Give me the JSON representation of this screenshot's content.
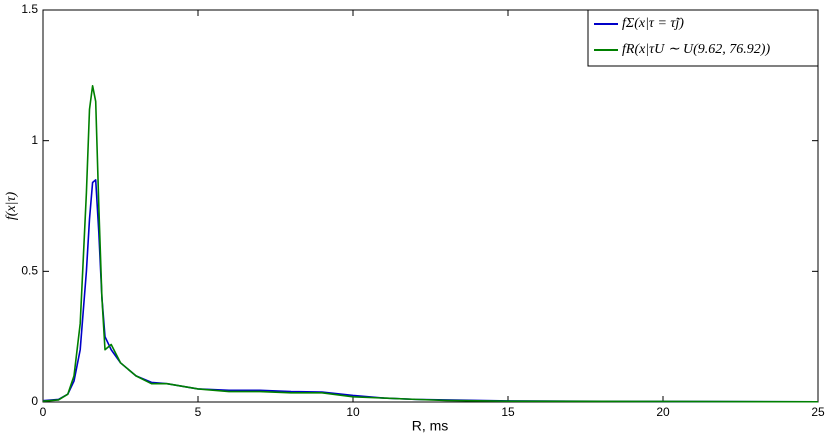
{
  "chart_data": {
    "type": "line",
    "xlabel": "R, ms",
    "ylabel": "f(x|τ)",
    "x": [
      0,
      0.5,
      0.8,
      1.0,
      1.2,
      1.4,
      1.5,
      1.6,
      1.7,
      1.8,
      1.9,
      2.0,
      2.2,
      2.5,
      3,
      3.5,
      4,
      5,
      6,
      7,
      8,
      9,
      10,
      11,
      12,
      13,
      15,
      20,
      25
    ],
    "series": [
      {
        "name": "fΣ(x|τ = τ̃j)",
        "color": "#0000c8",
        "values": [
          0.005,
          0.01,
          0.03,
          0.08,
          0.2,
          0.5,
          0.7,
          0.84,
          0.85,
          0.65,
          0.4,
          0.25,
          0.2,
          0.15,
          0.1,
          0.075,
          0.07,
          0.05,
          0.045,
          0.045,
          0.04,
          0.038,
          0.025,
          0.015,
          0.01,
          0.008,
          0.004,
          0.002,
          0.001
        ]
      },
      {
        "name": "fR(x|τU ∼ U(9.62, 76.92))",
        "color": "#008000",
        "values": [
          0.003,
          0.008,
          0.03,
          0.1,
          0.3,
          0.8,
          1.12,
          1.21,
          1.15,
          0.75,
          0.4,
          0.2,
          0.22,
          0.15,
          0.1,
          0.07,
          0.07,
          0.05,
          0.04,
          0.04,
          0.035,
          0.035,
          0.02,
          0.015,
          0.01,
          0.006,
          0.003,
          0.002,
          0.001
        ]
      }
    ],
    "xlim": [
      0,
      25
    ],
    "xticks": [
      0,
      5,
      10,
      15,
      20,
      25
    ],
    "ylim": [
      0,
      1.5
    ],
    "yticks": [
      0,
      0.5,
      1,
      1.5
    ],
    "legend": "upper right"
  }
}
